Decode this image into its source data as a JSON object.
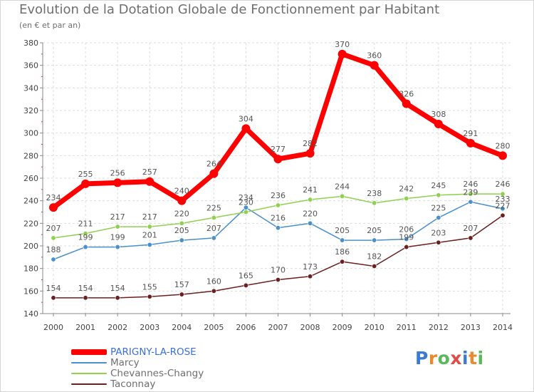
{
  "header": {
    "title": "Evolution de la Dotation Globale de Fonctionnement par Habitant",
    "subtitle": "(en € et par an)"
  },
  "logo": {
    "letters": [
      "P",
      "r",
      "o",
      "x",
      "i",
      "t",
      "i"
    ],
    "colors": [
      "#3b7bd4",
      "#e98a2b",
      "#5cb85c",
      "#e04b4b",
      "#3b7bd4",
      "#e98a2b",
      "#5cb85c"
    ]
  },
  "chart_data": {
    "type": "line",
    "title": "Evolution de la Dotation Globale de Fonctionnement par Habitant",
    "subtitle": "(en € et par an)",
    "x": [
      "2000",
      "2001",
      "2002",
      "2003",
      "2004",
      "2005",
      "2006",
      "2007",
      "2008",
      "2009",
      "2010",
      "2011",
      "2012",
      "2013",
      "2014"
    ],
    "ylim": [
      140,
      380
    ],
    "yticks": [
      140,
      160,
      180,
      200,
      220,
      240,
      260,
      280,
      300,
      320,
      340,
      360,
      380
    ],
    "grid": true,
    "legend_position": "bottom-left",
    "series": [
      {
        "name": "PARIGNY-LA-ROSE",
        "color": "#ff0000",
        "values": [
          234,
          255,
          256,
          257,
          240,
          264,
          304,
          277,
          282,
          370,
          360,
          326,
          308,
          291,
          280
        ],
        "labels": [
          "234",
          "255",
          "256",
          "257",
          "240",
          "264",
          "304",
          "277",
          "282",
          "370",
          "360",
          "326",
          "308",
          "291",
          "280"
        ]
      },
      {
        "name": "Marcy",
        "color": "#4a90cc",
        "values": [
          188,
          199,
          199,
          201,
          205,
          207,
          234,
          216,
          220,
          205,
          205,
          206,
          225,
          239,
          233
        ],
        "labels": [
          "188",
          "199",
          "199",
          "201",
          "205",
          "207",
          "234",
          "216",
          "220",
          "205",
          "205",
          "206",
          "225",
          "239",
          "233"
        ]
      },
      {
        "name": "Chevannes-Changy",
        "color": "#8fd14f",
        "values": [
          207,
          211,
          217,
          217,
          220,
          225,
          230,
          236,
          241,
          244,
          238,
          242,
          245,
          246,
          246
        ],
        "labels": [
          "207",
          "211",
          "217",
          "217",
          "220",
          "225",
          "230",
          "236",
          "241",
          "244",
          "238",
          "242",
          "245",
          "246",
          "246"
        ]
      },
      {
        "name": "Taconnay",
        "color": "#6b1f1f",
        "values": [
          154,
          154,
          154,
          155,
          157,
          160,
          165,
          170,
          173,
          186,
          182,
          199,
          203,
          207,
          227
        ],
        "labels": [
          "154",
          "154",
          "154",
          "155",
          "157",
          "160",
          "165",
          "170",
          "173",
          "186",
          "182",
          "199",
          "203",
          "207",
          "227"
        ]
      }
    ]
  }
}
